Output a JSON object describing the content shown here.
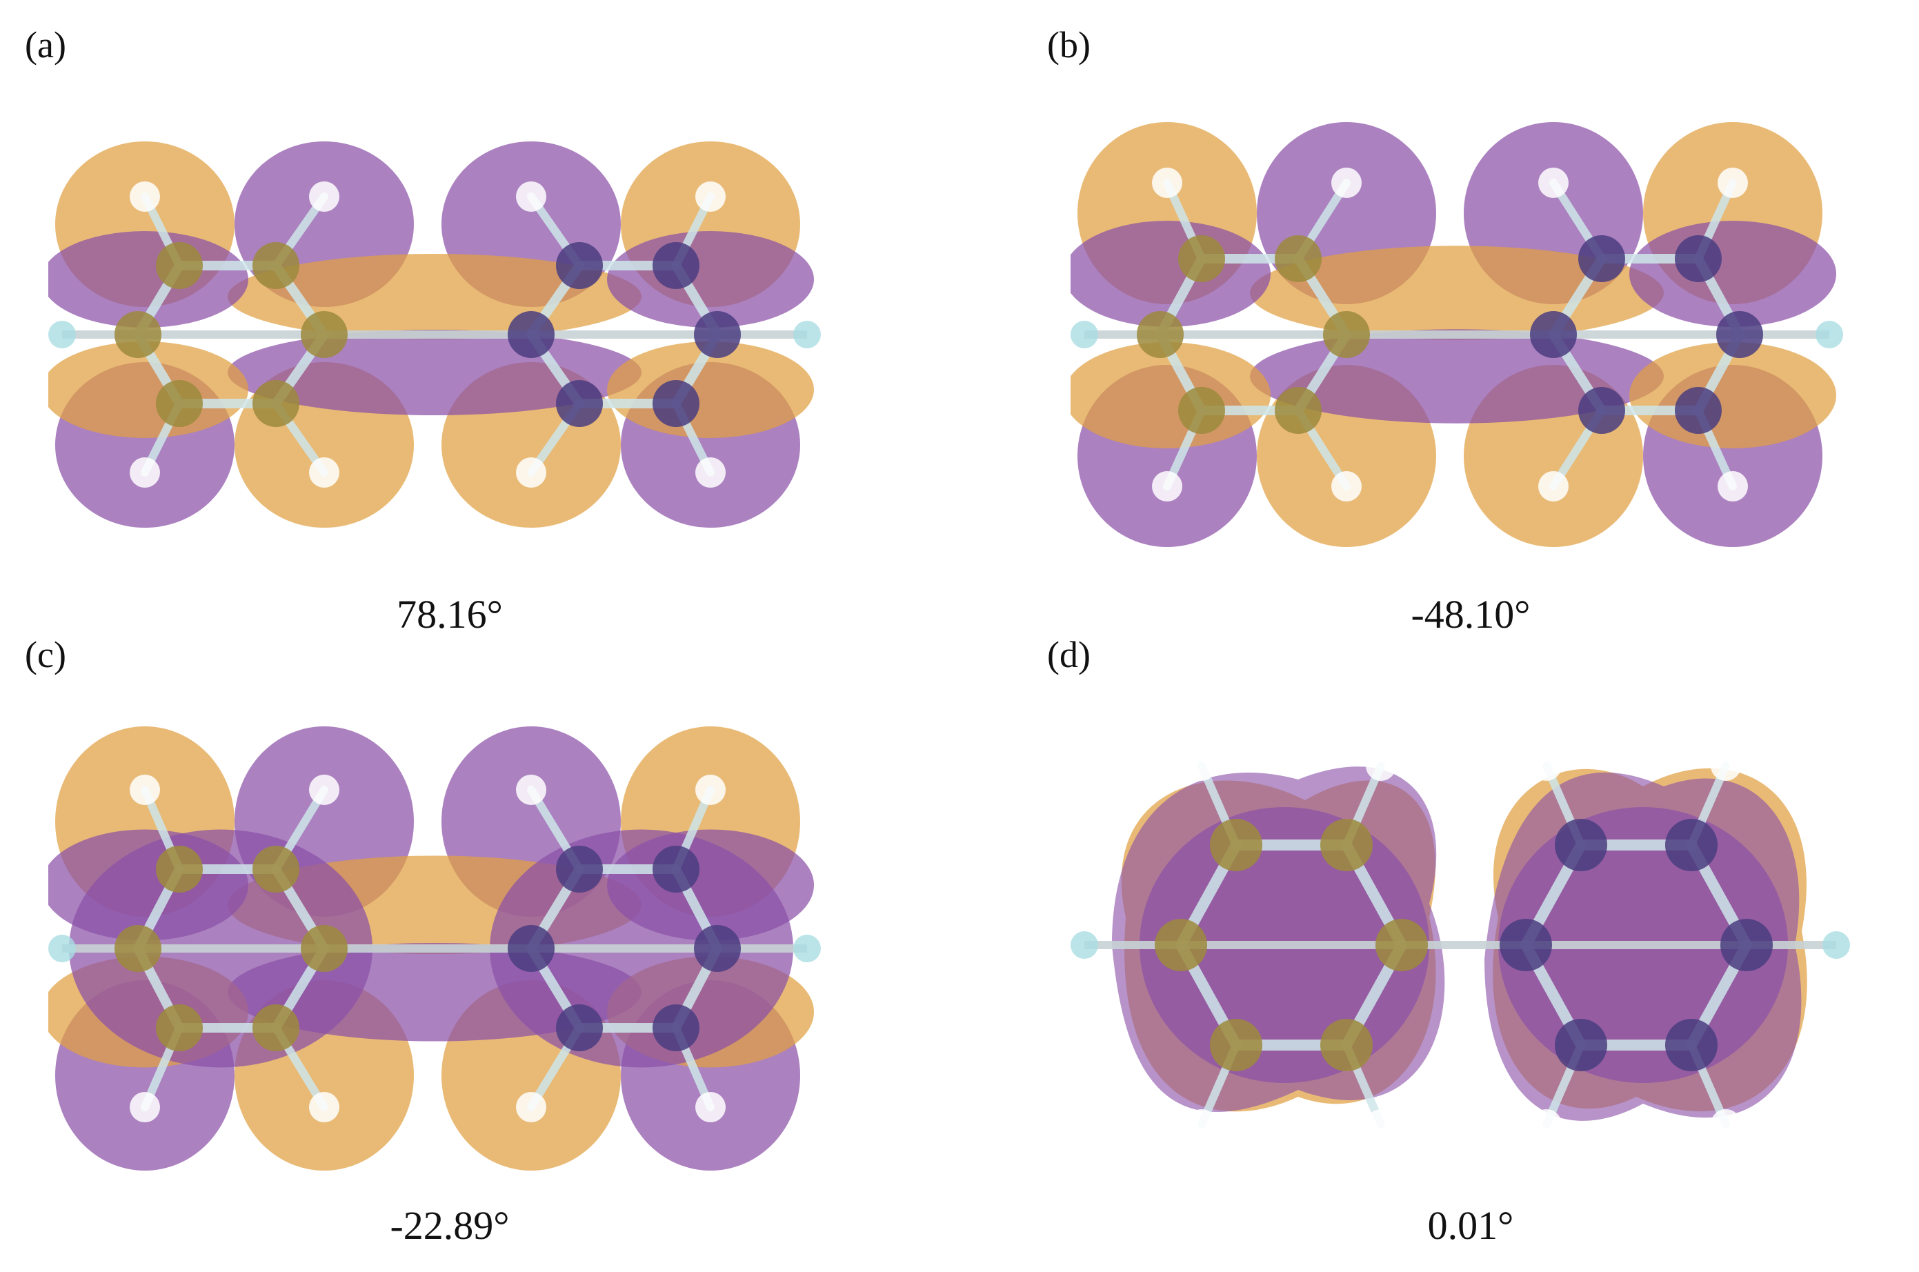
{
  "colors": {
    "orange_lobe": "#e0a040",
    "purple_lobe": "#8a50a8",
    "carbon_on_orange": "#9c8a3c",
    "carbon_on_purple": "#4a3d80",
    "hydrogen": "#ffffff",
    "bond": "#cfe6ea",
    "axis_bar": "#c8d3d6",
    "axis_end": "#a9dde2"
  },
  "panels": [
    {
      "label": "(a)",
      "angle": "78.16°",
      "icon": "orbital-isosurface-twisted"
    },
    {
      "label": "(b)",
      "angle": "-48.10°",
      "icon": "orbital-isosurface-twisted"
    },
    {
      "label": "(c)",
      "angle": "-22.89°",
      "icon": "orbital-isosurface-twisted"
    },
    {
      "label": "(d)",
      "angle": "0.01°",
      "icon": "orbital-isosurface-planar"
    }
  ]
}
